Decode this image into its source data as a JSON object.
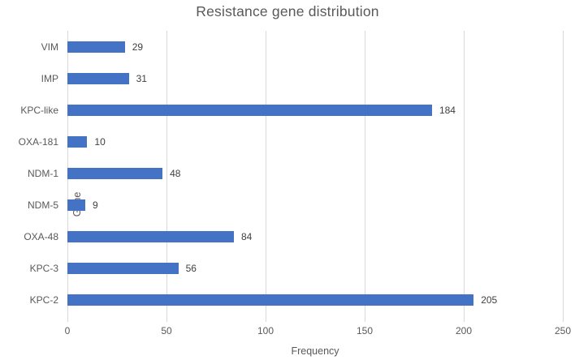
{
  "chart_data": {
    "type": "bar",
    "orientation": "horizontal",
    "title": "Resistance gene distribution",
    "categories": [
      "VIM",
      "IMP",
      "KPC-like",
      "OXA-181",
      "NDM-1",
      "NDM-5",
      "OXA-48",
      "KPC-3",
      "KPC-2"
    ],
    "values": [
      29,
      31,
      184,
      10,
      48,
      9,
      84,
      56,
      205
    ],
    "xlabel": "Frequency",
    "ylabel": "Gene",
    "xlim": [
      0,
      250
    ],
    "xticks": [
      0,
      50,
      100,
      150,
      200,
      250
    ],
    "grid": "vertical",
    "legend": "none",
    "bar_color": "#4472c4",
    "gridline_color": "#d9d9d9",
    "title_color": "#595959",
    "axis_text_color": "#595959",
    "value_label_color": "#404040"
  }
}
